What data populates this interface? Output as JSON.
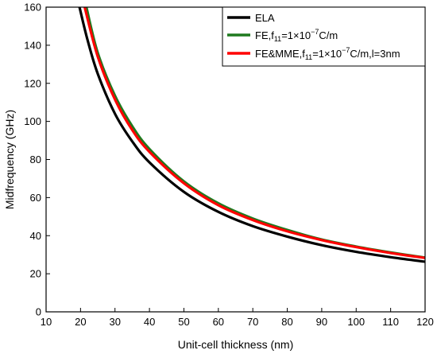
{
  "chart_data": {
    "type": "line",
    "title": "",
    "xlabel": "Unit-cell thickness (nm)",
    "ylabel": "Midfrequency (GHz)",
    "xlim": [
      10,
      120
    ],
    "ylim": [
      0,
      160
    ],
    "xticks": [
      10,
      20,
      30,
      40,
      50,
      60,
      70,
      80,
      90,
      100,
      110,
      120
    ],
    "yticks": [
      0,
      20,
      40,
      60,
      80,
      100,
      120,
      140,
      160
    ],
    "grid": false,
    "legend_position": "top-right",
    "series": [
      {
        "name": "ELA",
        "color": "#000000",
        "x": [
          19.7,
          22,
          25,
          30,
          35,
          40,
          50,
          60,
          70,
          80,
          90,
          100,
          110,
          120
        ],
        "y": [
          160,
          143,
          125,
          104,
          89.5,
          78.5,
          63,
          52.5,
          45,
          39.5,
          35,
          31.5,
          28.7,
          26.3
        ]
      },
      {
        "name": "FE,f11=1×10−7C/m",
        "color": "#1f7a1f",
        "x": [
          21.7,
          25,
          30,
          35,
          40,
          50,
          60,
          70,
          80,
          90,
          100,
          110,
          120
        ],
        "y": [
          160,
          136,
          113.5,
          97.5,
          85.5,
          68.5,
          57,
          49,
          43,
          38,
          34.3,
          31.2,
          28.5
        ]
      },
      {
        "name": "FE&MME,f11=1×10−7C/m,l=3nm",
        "color": "#ff0000",
        "x": [
          21.2,
          25,
          30,
          35,
          40,
          50,
          60,
          70,
          80,
          90,
          100,
          110,
          120
        ],
        "y": [
          160,
          134,
          111.5,
          95.5,
          84,
          67.5,
          56,
          48.2,
          42.3,
          37.7,
          34,
          30.9,
          28.3
        ]
      }
    ]
  },
  "legend": {
    "items": [
      {
        "color": "#000000",
        "text": "ELA",
        "sub": "",
        "sup": "",
        "text2": "",
        "text3": ""
      },
      {
        "color": "#1f7a1f",
        "text": "FE,f",
        "sub": "11",
        "mid": "=1×10",
        "sup": "−7",
        "tail": "C/m"
      },
      {
        "color": "#ff0000",
        "text": "FE&MME,f",
        "sub": "11",
        "mid": "=1×10",
        "sup": "−7",
        "tail": "C/m,l=3nm"
      }
    ]
  }
}
